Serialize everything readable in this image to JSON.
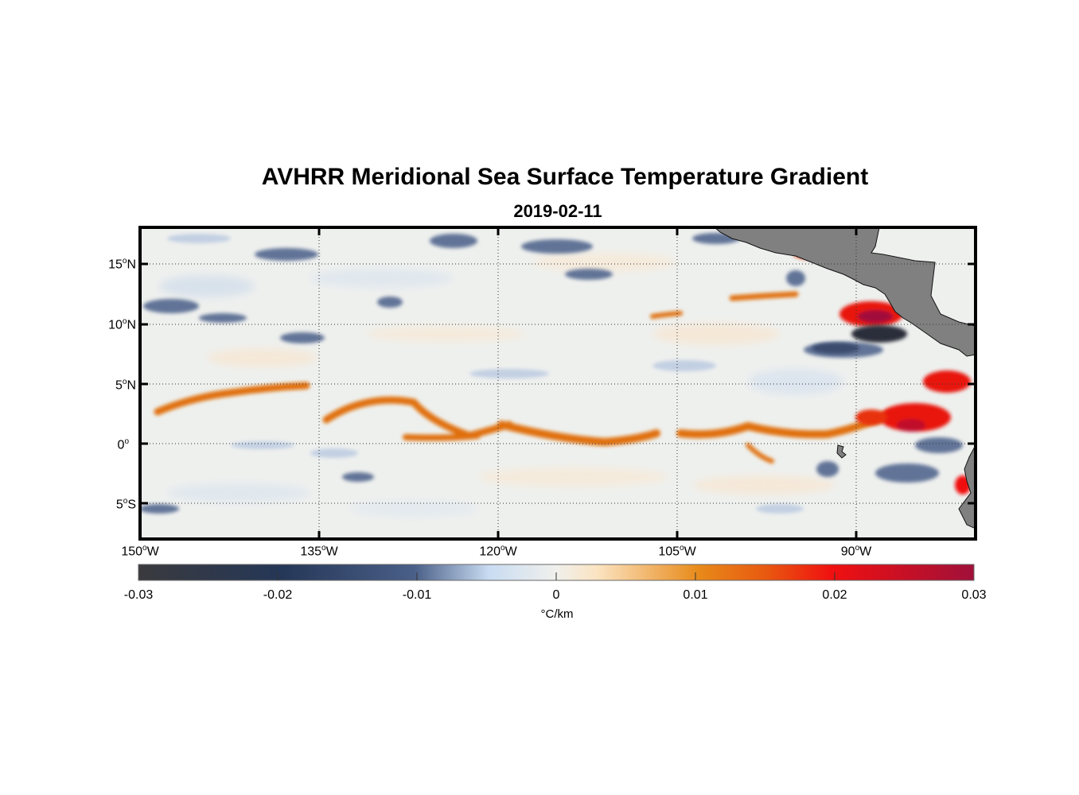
{
  "figure": {
    "title": "AVHRR Meridional Sea Surface Temperature Gradient",
    "subtitle": "2019-02-11"
  },
  "map": {
    "lon_range": [
      -150,
      -80
    ],
    "lat_range": [
      -8,
      18
    ],
    "land_color": "#808080",
    "lat_labels": [
      {
        "deg": "15",
        "hemi": "N",
        "lat": 15
      },
      {
        "deg": "10",
        "hemi": "N",
        "lat": 10
      },
      {
        "deg": "5",
        "hemi": "N",
        "lat": 5
      },
      {
        "deg": "0",
        "hemi": "",
        "lat": 0
      },
      {
        "deg": "5",
        "hemi": "S",
        "lat": -5
      }
    ],
    "lon_labels": [
      {
        "deg": "150",
        "hemi": "W",
        "lon": -150
      },
      {
        "deg": "135",
        "hemi": "W",
        "lon": -135
      },
      {
        "deg": "120",
        "hemi": "W",
        "lon": -120
      },
      {
        "deg": "105",
        "hemi": "W",
        "lon": -105
      },
      {
        "deg": "90",
        "hemi": "W",
        "lon": -90
      }
    ]
  },
  "colorbar": {
    "ticks": [
      "-0.03",
      "-0.02",
      "-0.01",
      "0",
      "0.01",
      "0.02",
      "0.03"
    ],
    "units": "°C/km",
    "colors": {
      "neg_max": "#3a3a3e",
      "neg_mid": "#253757",
      "neg_low": "#c9dcf2",
      "zero": "#f0f0ec",
      "pos_low": "#fbe3c0",
      "pos_mid": "#e88a1a",
      "pos_high": "#f01010",
      "pos_max": "#a0103a"
    }
  }
}
